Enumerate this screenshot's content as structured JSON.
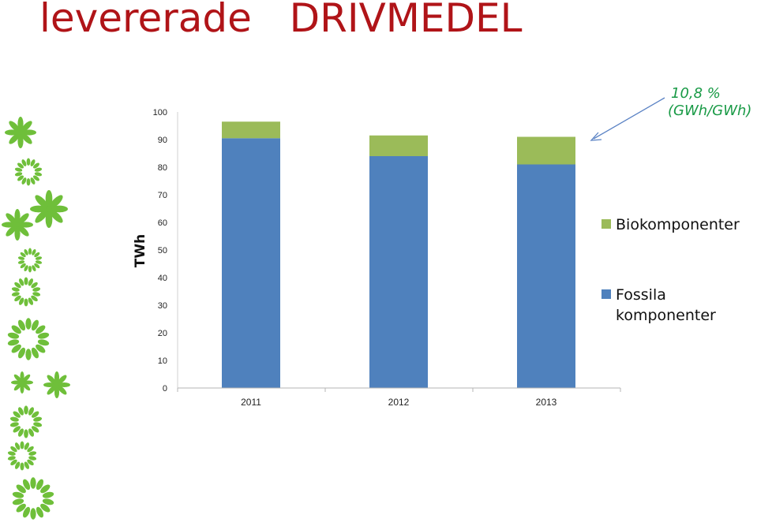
{
  "slide": {
    "title": "levererade   DRIVMEDEL"
  },
  "annotation": {
    "line1": "10,8 %",
    "line2": "(GWh/GWh)",
    "color": "#199a46"
  },
  "colors": {
    "title": "#b01418",
    "fossil": "#4f81bd",
    "bio": "#9bbb59",
    "arrow": "#5a82c4",
    "decoration": "#6fbf3a"
  },
  "decoration_icon": "green-flower-icon",
  "chart_data": {
    "type": "bar",
    "stacked": true,
    "categories": [
      "2011",
      "2012",
      "2013"
    ],
    "series": [
      {
        "name": "Fossila komponenter",
        "values": [
          90.5,
          84,
          81
        ],
        "color": "#4f81bd"
      },
      {
        "name": "Biokomponenter",
        "values": [
          6,
          7.5,
          10
        ],
        "color": "#9bbb59"
      }
    ],
    "ylabel": "TWh",
    "xlabel": "",
    "ylim": [
      0,
      100
    ],
    "yticks": [
      0,
      10,
      20,
      30,
      40,
      50,
      60,
      70,
      80,
      90,
      100
    ],
    "grid": false,
    "legend_position": "right",
    "legend_order": [
      "Biokomponenter",
      "Fossila komponenter"
    ]
  }
}
